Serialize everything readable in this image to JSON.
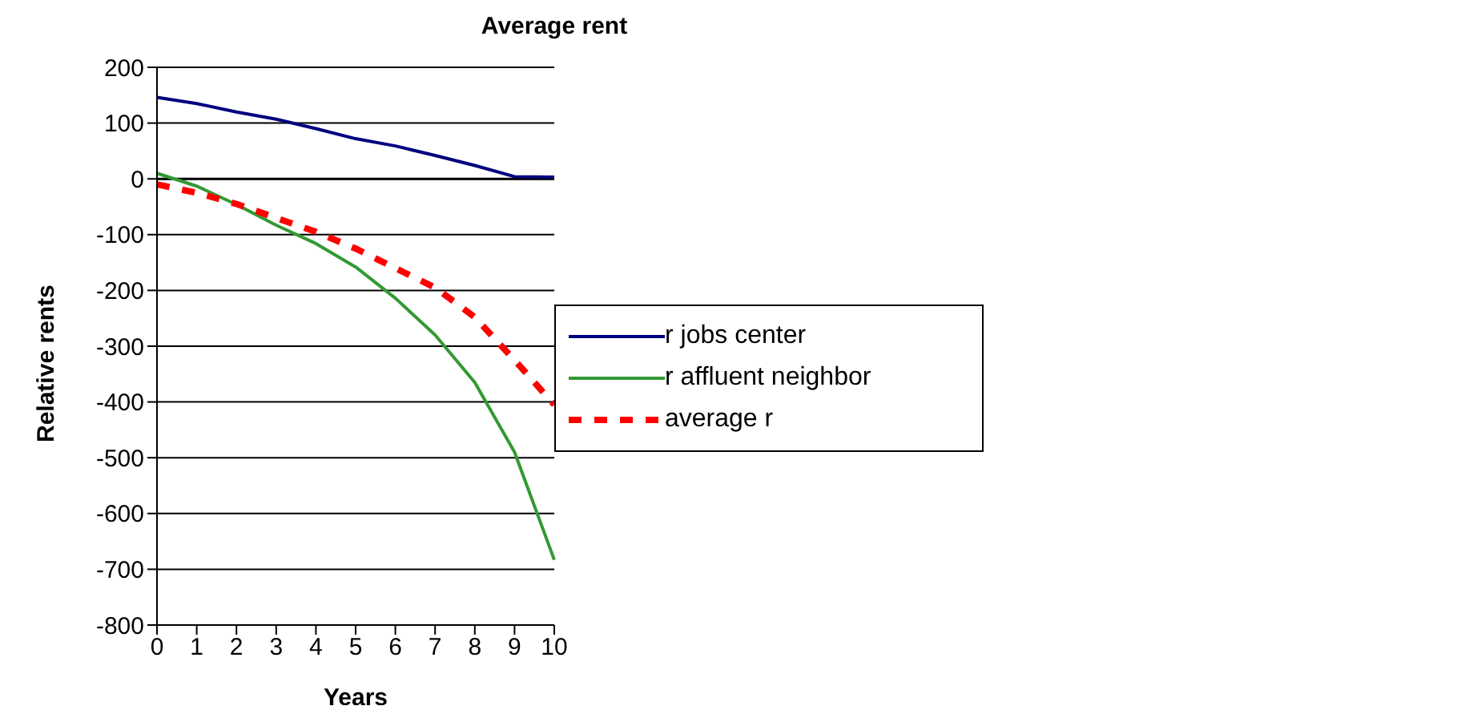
{
  "chart_data": {
    "type": "line",
    "title": "Average rent",
    "xlabel": "Years",
    "ylabel": "Relative rents",
    "categories": [
      "0",
      "1",
      "2",
      "3",
      "4",
      "5",
      "6",
      "7",
      "8",
      "9",
      "10"
    ],
    "series": [
      {
        "name": "r jobs center",
        "color": "#000080",
        "line_style": "solid",
        "values": [
          146,
          135,
          120,
          107,
          90,
          72,
          59,
          42,
          24,
          4,
          3
        ]
      },
      {
        "name": "r affluent neighbor",
        "color": "#339933",
        "line_style": "solid",
        "values": [
          10,
          -13,
          -46,
          -83,
          -116,
          -158,
          -214,
          -280,
          -365,
          -490,
          -683
        ]
      },
      {
        "name": "average r",
        "color": "#ff0000",
        "line_style": "dashed",
        "values": [
          -10,
          -25,
          -45,
          -70,
          -95,
          -125,
          -160,
          -195,
          -248,
          -325,
          -405
        ]
      }
    ],
    "ylim": [
      -800,
      200
    ],
    "yticks": [
      -800,
      -700,
      -600,
      -500,
      -400,
      -300,
      -200,
      -100,
      0,
      100,
      200
    ],
    "grid": "y",
    "legend": "right",
    "marker": "none"
  }
}
